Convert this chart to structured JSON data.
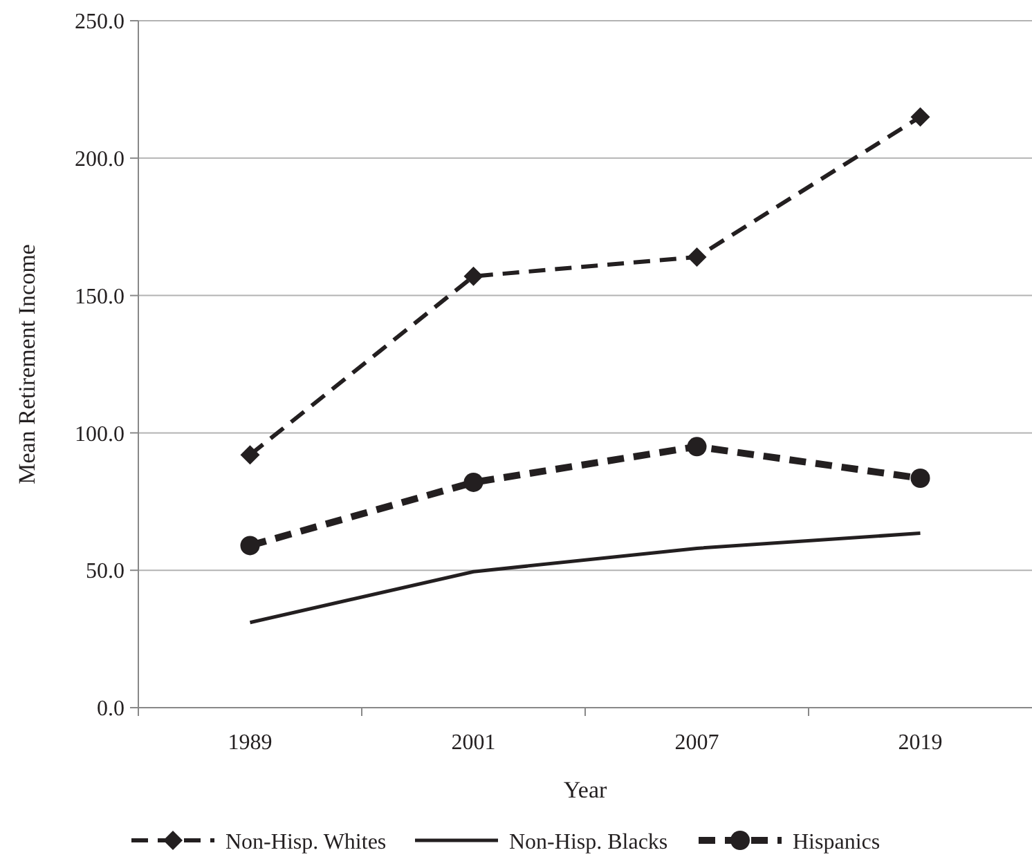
{
  "chart_data": {
    "type": "line",
    "xlabel": "Year",
    "ylabel": "Mean Retirement Income",
    "categories": [
      "1989",
      "2001",
      "2007",
      "2019"
    ],
    "series": [
      {
        "name": "Non-Hisp. Whites",
        "color": "#231f20",
        "values": [
          92,
          157,
          164,
          215
        ],
        "marker": "diamond",
        "line_style": "dashed"
      },
      {
        "name": "Non-Hisp. Blacks",
        "color": "#231f20",
        "values": [
          31,
          49.5,
          58,
          63.5
        ],
        "marker": "none",
        "line_style": "solid"
      },
      {
        "name": "Hispanics",
        "color": "#231f20",
        "values": [
          59,
          82,
          95,
          83.5
        ],
        "marker": "circle",
        "line_style": "dashed"
      }
    ],
    "ylim": [
      0,
      250
    ],
    "yticks": [
      {
        "value": 0,
        "label": "0.0"
      },
      {
        "value": 50,
        "label": "50.0"
      },
      {
        "value": 100,
        "label": "100.0"
      },
      {
        "value": 150,
        "label": "150.0"
      },
      {
        "value": 200,
        "label": "200.0"
      },
      {
        "value": 250,
        "label": "250.0"
      }
    ],
    "grid": "y",
    "legend": "bottom"
  }
}
